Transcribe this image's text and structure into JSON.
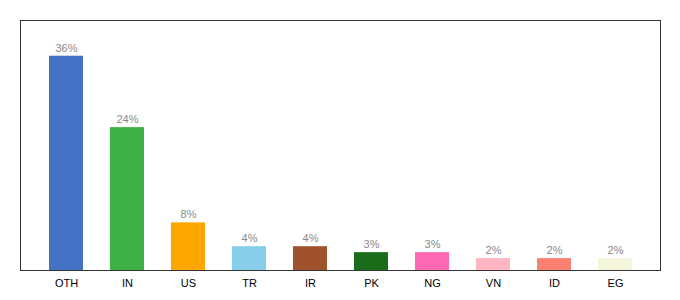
{
  "chart_data": {
    "type": "bar",
    "categories": [
      "OTH",
      "IN",
      "US",
      "TR",
      "IR",
      "PK",
      "NG",
      "VN",
      "ID",
      "EG"
    ],
    "values": [
      36,
      24,
      8,
      4,
      4,
      3,
      3,
      2,
      2,
      2
    ],
    "value_labels": [
      "36%",
      "24%",
      "8%",
      "4%",
      "4%",
      "3%",
      "3%",
      "2%",
      "2%",
      "2%"
    ],
    "colors": [
      "#4472C4",
      "#3CB043",
      "#FFA500",
      "#87CEEB",
      "#A0522D",
      "#1A6B1A",
      "#FF69B4",
      "#FFB6C1",
      "#FA8072",
      "#F5F5DC"
    ],
    "ylim": [
      0,
      42
    ],
    "data_labels": true,
    "tick_labels": "x",
    "grid": false
  }
}
